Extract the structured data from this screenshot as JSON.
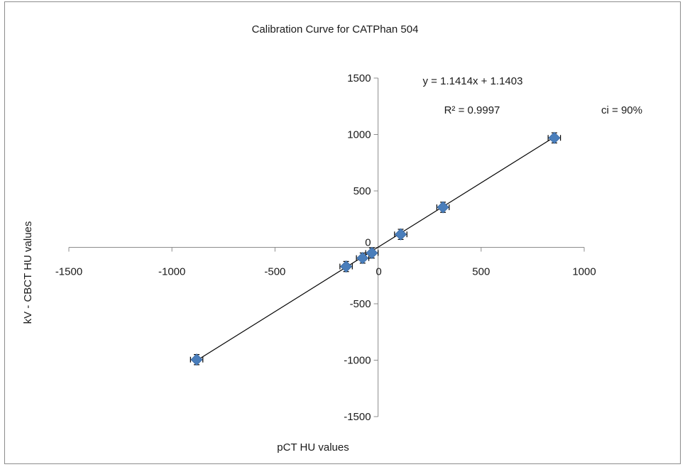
{
  "chart_data": {
    "type": "scatter",
    "title": "Calibration Curve for CATPhan 504",
    "xlabel": "pCT HU values",
    "ylabel": "kV  -  CBCT  HU values",
    "xlim": [
      -1500,
      1000
    ],
    "ylim": [
      -1500,
      1500
    ],
    "xticks": [
      -1500,
      -1000,
      -500,
      0,
      500,
      1000
    ],
    "yticks": [
      -1500,
      -1000,
      -500,
      0,
      500,
      1000,
      1500
    ],
    "xtick_labels": [
      "-1500",
      "-1000",
      "-500",
      "0",
      "500",
      "1000"
    ],
    "ytick_labels": [
      "-1500",
      "-1000",
      "-500",
      "0",
      "500",
      "1000",
      "1500"
    ],
    "grid": false,
    "marker": "diamond",
    "marker_color": "#4a7ebb",
    "line_color": "#000000",
    "points": [
      {
        "x": -880,
        "y": -995,
        "xerr": 30,
        "yerr": 45
      },
      {
        "x": -155,
        "y": -170,
        "xerr": 30,
        "yerr": 45
      },
      {
        "x": -75,
        "y": -95,
        "xerr": 30,
        "yerr": 45
      },
      {
        "x": -30,
        "y": -50,
        "xerr": 30,
        "yerr": 45
      },
      {
        "x": 110,
        "y": 115,
        "xerr": 30,
        "yerr": 45
      },
      {
        "x": 315,
        "y": 355,
        "xerr": 30,
        "yerr": 45
      },
      {
        "x": 855,
        "y": 970,
        "xerr": 30,
        "yerr": 45
      }
    ],
    "trendline": {
      "slope": 1.1414,
      "intercept": 1.1403,
      "x_range": [
        -880,
        855
      ]
    },
    "annotations": {
      "equation": "y = 1.1414x + 1.1403",
      "r_squared": "R² = 0.9997",
      "ci": "ci = 90%"
    }
  }
}
